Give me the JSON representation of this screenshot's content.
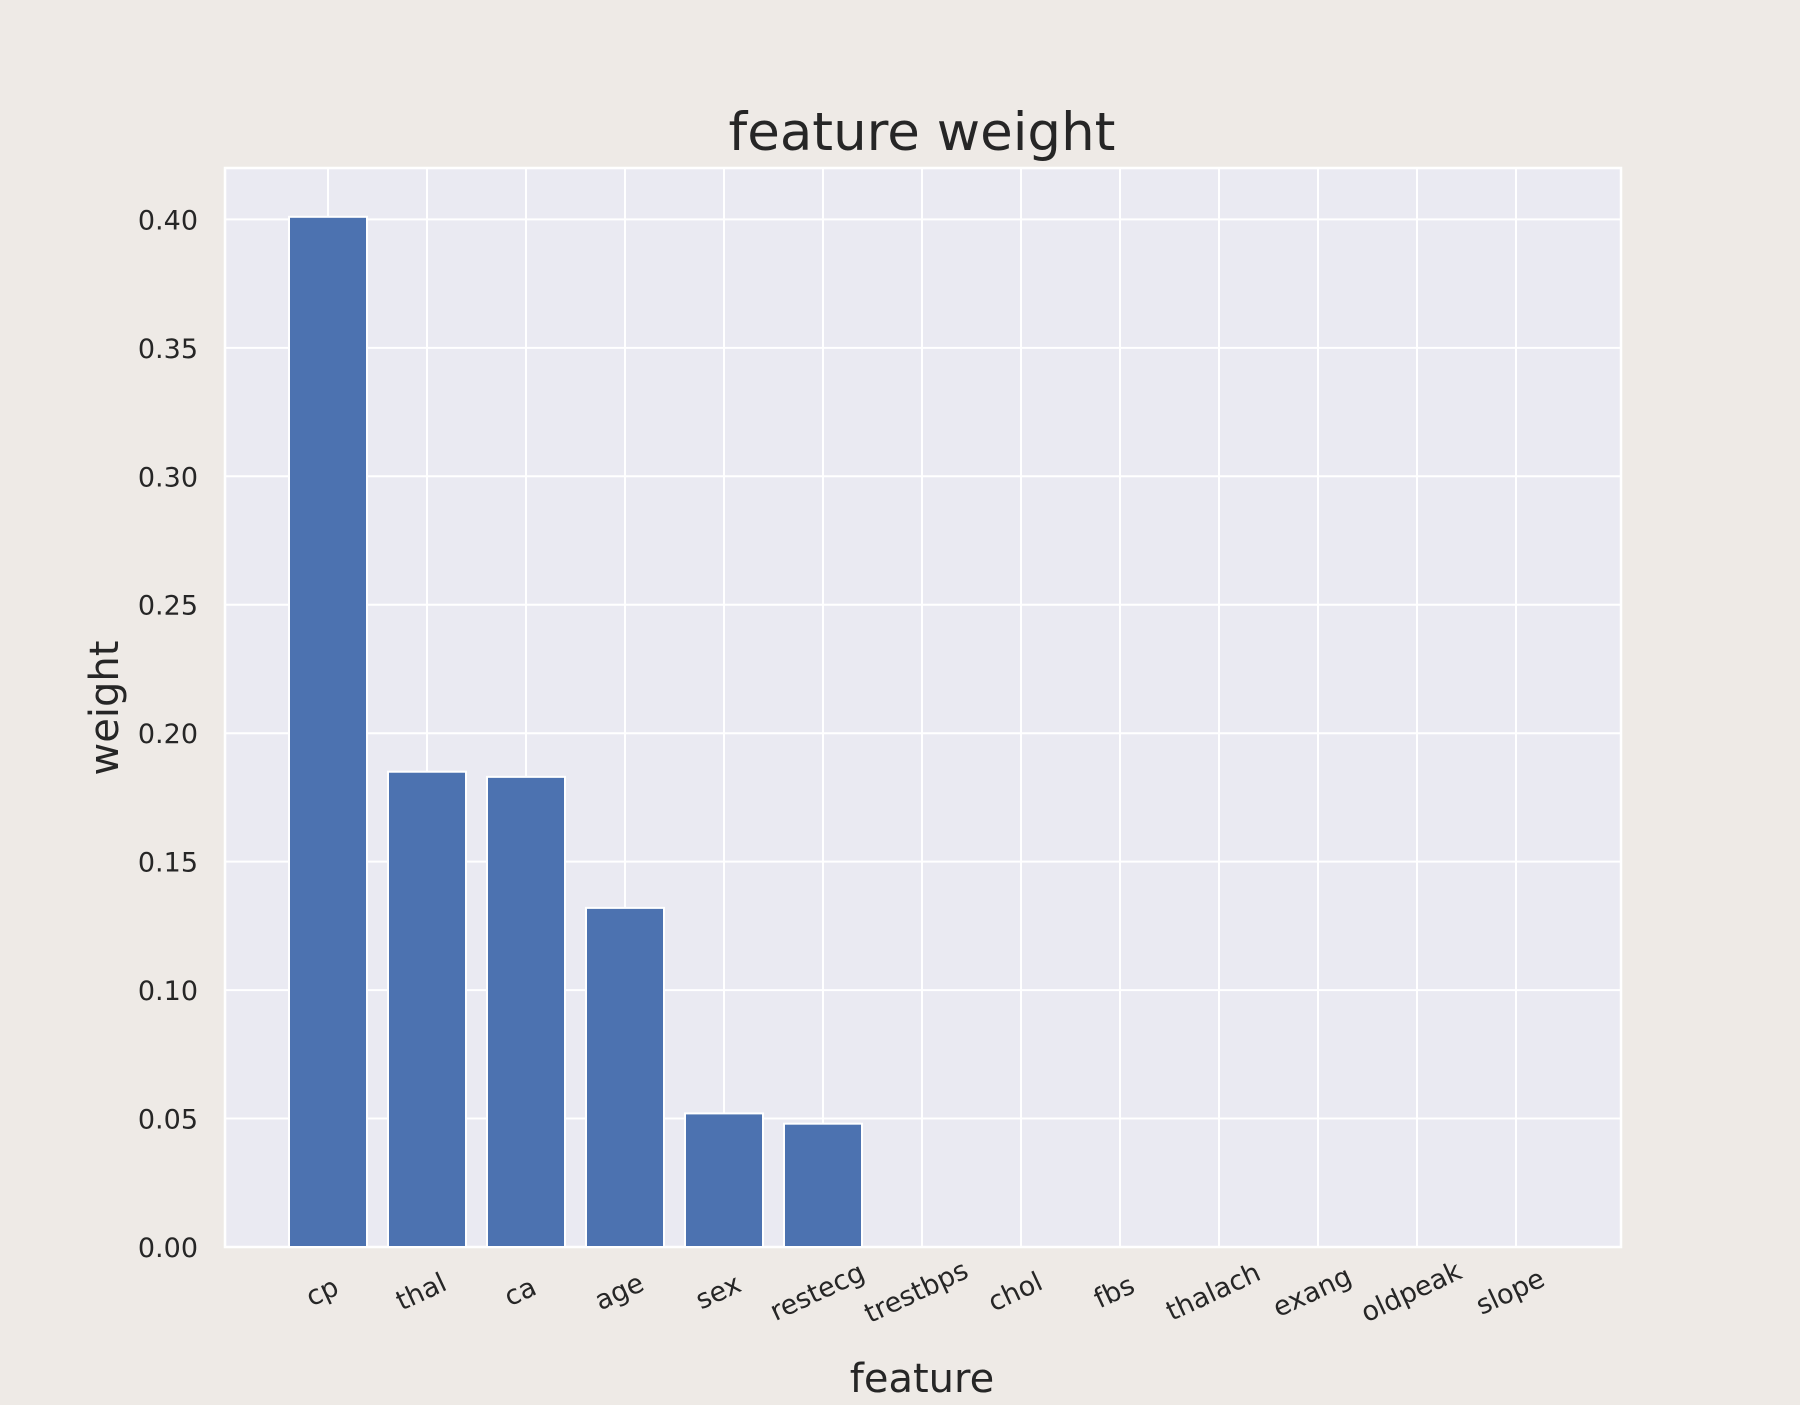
{
  "chart_data": {
    "type": "bar",
    "title": "feature weight",
    "xlabel": "feature",
    "ylabel": "weight",
    "categories": [
      "cp",
      "thal",
      "ca",
      "age",
      "sex",
      "restecg",
      "trestbps",
      "chol",
      "fbs",
      "thalach",
      "exang",
      "oldpeak",
      "slope"
    ],
    "values": [
      0.401,
      0.185,
      0.183,
      0.132,
      0.052,
      0.048,
      0,
      0,
      0,
      0,
      0,
      0,
      0
    ],
    "ylim": [
      0,
      0.42
    ],
    "yticks": [
      "0.00",
      "0.05",
      "0.10",
      "0.15",
      "0.20",
      "0.25",
      "0.30",
      "0.35",
      "0.40"
    ],
    "grid": true,
    "colors": {
      "bar": "#4C72B0",
      "plot_background": "#EAEAF2",
      "figure_background": "#EEEAE6",
      "grid": "#FFFFFF"
    }
  }
}
